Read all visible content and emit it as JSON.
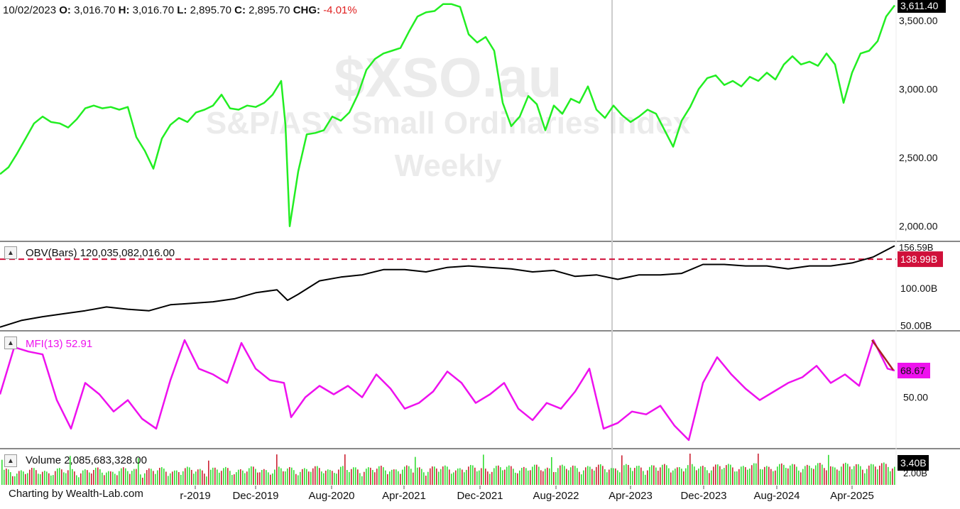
{
  "header": {
    "date": "10/02/2023",
    "o_label": "O:",
    "o_value": "3,016.70",
    "h_label": "H:",
    "h_value": "3,016.70",
    "l_label": "L:",
    "l_value": "2,895.70",
    "c_label": "C:",
    "c_value": "2,895.70",
    "chg_label": "CHG:",
    "chg_value": "-4.01%"
  },
  "watermark": {
    "symbol": "$XSO.au",
    "name": "S&P/ASX Small Ordinaries Index",
    "period": "Weekly"
  },
  "panes": {
    "obv_label": "OBV(Bars) 120,035,082,016.00",
    "mfi_label": "MFI(13) 52.91",
    "volume_label": "Volume 2,085,683,328.00"
  },
  "footer": {
    "credit": "Charting by Wealth-Lab.com"
  },
  "colors": {
    "price": "#22ee22",
    "obv": "#000000",
    "mfi": "#ee11ee",
    "reference_line": "#d0103a",
    "volume_up": "#33dd33",
    "volume_down": "#cc2233",
    "trendline": "#aa2222",
    "cursor": "#cccccc"
  },
  "icons": {
    "pane_toggle": "triangle-up-icon"
  },
  "chart_data": {
    "type": "line",
    "x_ticks": [
      "r-2019",
      "Dec-2019",
      "Aug-2020",
      "Apr-2021",
      "Dec-2021",
      "Aug-2022",
      "Apr-2023",
      "Dec-2023",
      "Aug-2024",
      "Apr-2025"
    ],
    "price": {
      "name": "$XSO.au",
      "ylim": [
        1900,
        3650
      ],
      "y_ticks": [
        "2,000.00",
        "2,500.00",
        "3,000.00",
        "3,500.00"
      ],
      "last_label": "3,611.40",
      "x": [
        0,
        12,
        24,
        36,
        48,
        60,
        72,
        84,
        96,
        108,
        120,
        132,
        144,
        156,
        168,
        180,
        192,
        204,
        216,
        228,
        240,
        252,
        264,
        276,
        288,
        300,
        312,
        324,
        336,
        348,
        360,
        372,
        384,
        396,
        402,
        408,
        420,
        432,
        444,
        456,
        468,
        480,
        492,
        504,
        516,
        528,
        540,
        552,
        564,
        576,
        588,
        600,
        612,
        624,
        636,
        648,
        660,
        672,
        684,
        696,
        708,
        720,
        732,
        744,
        756,
        768,
        780,
        792,
        804,
        816,
        828,
        840,
        852,
        864,
        876,
        888,
        900,
        912,
        924,
        936,
        948,
        960,
        972,
        984,
        996,
        1008,
        1020,
        1032,
        1044,
        1056,
        1068,
        1080,
        1092,
        1104,
        1116,
        1128,
        1140,
        1152,
        1164,
        1176,
        1188,
        1200,
        1212,
        1224,
        1236,
        1248,
        1260
      ],
      "values": [
        2380,
        2430,
        2530,
        2640,
        2750,
        2800,
        2760,
        2750,
        2720,
        2780,
        2860,
        2880,
        2860,
        2870,
        2850,
        2870,
        2650,
        2550,
        2420,
        2640,
        2740,
        2790,
        2760,
        2830,
        2850,
        2880,
        2960,
        2860,
        2850,
        2880,
        2870,
        2900,
        2960,
        3060,
        2740,
        2000,
        2400,
        2670,
        2680,
        2700,
        2800,
        2770,
        2830,
        2960,
        3140,
        3220,
        3260,
        3280,
        3300,
        3420,
        3530,
        3560,
        3570,
        3620,
        3620,
        3600,
        3400,
        3340,
        3380,
        3280,
        2900,
        2730,
        2800,
        2950,
        2890,
        2700,
        2880,
        2820,
        2930,
        2900,
        3020,
        2850,
        2790,
        2880,
        2810,
        2760,
        2800,
        2850,
        2820,
        2700,
        2580,
        2770,
        2870,
        3000,
        3080,
        3100,
        3030,
        3060,
        3020,
        3090,
        3060,
        3120,
        3070,
        3180,
        3240,
        3180,
        3200,
        3170,
        3260,
        3180,
        2900,
        3120,
        3260,
        3280,
        3350,
        3530,
        3611
      ]
    },
    "obv": {
      "name": "OBV(Bars)",
      "ylim": [
        45,
        160
      ],
      "y_ticks": [
        "50.00B",
        "100.00B"
      ],
      "reference_value": 138.99,
      "reference_label": "138.99B",
      "last_label": "156.59B",
      "x": [
        0,
        30,
        60,
        90,
        120,
        150,
        180,
        210,
        240,
        270,
        300,
        330,
        360,
        390,
        405,
        420,
        450,
        480,
        510,
        540,
        570,
        600,
        630,
        660,
        690,
        720,
        750,
        780,
        810,
        840,
        870,
        900,
        930,
        960,
        990,
        1020,
        1050,
        1080,
        1110,
        1140,
        1170,
        1200,
        1230,
        1260
      ],
      "values": [
        48,
        57,
        62,
        66,
        70,
        75,
        72,
        70,
        78,
        80,
        82,
        86,
        94,
        98,
        84,
        92,
        110,
        115,
        118,
        125,
        125,
        122,
        128,
        130,
        128,
        126,
        122,
        124,
        116,
        118,
        112,
        118,
        118,
        120,
        132,
        132,
        130,
        130,
        126,
        130,
        130,
        134,
        142,
        157
      ]
    },
    "mfi": {
      "name": "MFI(13)",
      "ylim": [
        15,
        95
      ],
      "y_ticks": [
        "50.00"
      ],
      "last_label": "68.67",
      "x": [
        0,
        20,
        40,
        60,
        80,
        100,
        120,
        140,
        160,
        180,
        200,
        220,
        240,
        260,
        280,
        300,
        320,
        340,
        360,
        380,
        400,
        410,
        430,
        450,
        470,
        490,
        510,
        530,
        550,
        570,
        590,
        610,
        630,
        650,
        670,
        690,
        710,
        730,
        750,
        770,
        790,
        810,
        830,
        850,
        870,
        890,
        910,
        930,
        950,
        970,
        990,
        1010,
        1030,
        1050,
        1070,
        1090,
        1110,
        1130,
        1150,
        1170,
        1190,
        1210,
        1230,
        1250,
        1260
      ],
      "values": [
        52,
        85,
        82,
        80,
        48,
        28,
        60,
        52,
        40,
        48,
        35,
        28,
        62,
        90,
        70,
        66,
        60,
        88,
        70,
        62,
        60,
        36,
        50,
        58,
        52,
        58,
        50,
        66,
        56,
        42,
        46,
        54,
        68,
        60,
        46,
        52,
        60,
        42,
        34,
        46,
        42,
        54,
        70,
        28,
        32,
        40,
        38,
        44,
        30,
        20,
        60,
        78,
        66,
        56,
        48,
        54,
        60,
        64,
        72,
        60,
        66,
        58,
        90,
        70,
        68.67
      ]
    },
    "volume": {
      "name": "Volume",
      "last_label": "3.40B",
      "y_ticks": [
        "2.00B"
      ]
    }
  }
}
